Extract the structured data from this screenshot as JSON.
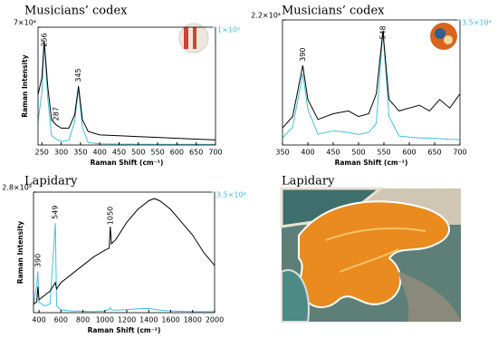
{
  "chart_data": [
    {
      "type": "line",
      "title": "Musicians’ codex",
      "xlabel": "Raman Shift (cm⁻¹)",
      "ylabel": "Raman Intensity",
      "x": [
        240,
        250,
        256,
        265,
        275,
        287,
        300,
        320,
        335,
        345,
        355,
        370,
        400,
        450,
        500,
        550,
        600,
        650,
        700
      ],
      "xlim": [
        240,
        700
      ],
      "xticks": [
        250,
        300,
        350,
        400,
        450,
        500,
        550,
        600,
        650,
        700
      ],
      "ylim": [
        0,
        70000
      ],
      "yticks": [
        {
          "value": 70000,
          "label": "7×10⁴"
        }
      ],
      "y2lim": [
        0,
        100000
      ],
      "y2ticks": [
        {
          "value": 100000,
          "label": "1×10⁵"
        }
      ],
      "series": [
        {
          "color": "#000000",
          "values": [
            30000,
            40000,
            62000,
            35000,
            15000,
            12000,
            10000,
            10000,
            18000,
            35000,
            15000,
            8000,
            6000,
            5500,
            5000,
            4500,
            4000,
            3500,
            3000
          ]
        },
        {
          "color": "#3fc0e0",
          "axis": "y2",
          "values": [
            20000,
            45000,
            88000,
            40000,
            8000,
            5000,
            3000,
            4000,
            20000,
            48000,
            15000,
            2000,
            1000,
            800,
            700,
            600,
            600,
            500,
            500
          ]
        }
      ],
      "annotations": [
        {
          "x": 256,
          "text": "256"
        },
        {
          "x": 287,
          "text": "287"
        },
        {
          "x": 345,
          "text": "345"
        }
      ]
    },
    {
      "type": "line",
      "title": "Musicians’ codex",
      "xlabel": "Raman Shift (cm⁻¹)",
      "x": [
        350,
        370,
        390,
        400,
        420,
        450,
        480,
        500,
        520,
        535,
        548,
        560,
        580,
        600,
        620,
        640,
        660,
        680,
        700
      ],
      "xlim": [
        350,
        700
      ],
      "xticks": [
        350,
        400,
        450,
        500,
        550,
        600,
        650,
        700
      ],
      "ylim": [
        0,
        22000
      ],
      "yticks": [
        {
          "value": 22000,
          "label": "2.2×10⁴"
        }
      ],
      "y2lim": [
        0,
        35000
      ],
      "y2ticks": [
        {
          "value": 35000,
          "label": "3.5×10⁴"
        }
      ],
      "series": [
        {
          "color": "#000000",
          "values": [
            3000,
            5000,
            14000,
            8000,
            4500,
            5500,
            6000,
            5000,
            5500,
            9000,
            20000,
            8000,
            6000,
            6500,
            7000,
            6000,
            8000,
            6500,
            9000
          ]
        },
        {
          "color": "#3fc0e0",
          "axis": "y2",
          "values": [
            2000,
            5000,
            20000,
            10000,
            3000,
            4000,
            3500,
            3000,
            3500,
            6000,
            32000,
            8000,
            2500,
            2200,
            2000,
            1900,
            1800,
            1600,
            1500
          ]
        }
      ],
      "annotations": [
        {
          "x": 390,
          "text": "390"
        },
        {
          "x": 548,
          "text": "548"
        }
      ]
    },
    {
      "type": "line",
      "title": "Lapidary",
      "xlabel": "Raman Shift (cm⁻¹)",
      "ylabel": "Raman Intensity",
      "x": [
        350,
        380,
        390,
        400,
        450,
        500,
        549,
        560,
        600,
        700,
        800,
        900,
        1000,
        1040,
        1050,
        1060,
        1100,
        1200,
        1300,
        1400,
        1450,
        1500,
        1600,
        1700,
        1800,
        1900,
        2000
      ],
      "xlim": [
        350,
        2000
      ],
      "xticks": [
        400,
        600,
        800,
        1000,
        1200,
        1400,
        1600,
        1800,
        2000
      ],
      "ylim": [
        0,
        2800
      ],
      "yticks": [
        {
          "value": 2800,
          "label": "2.8×10³"
        }
      ],
      "y2lim": [
        0,
        35000
      ],
      "y2ticks": [
        {
          "value": 35000,
          "label": "3.5×10⁴"
        }
      ],
      "series": [
        {
          "color": "#000000",
          "values": [
            200,
            250,
            600,
            300,
            400,
            500,
            700,
            550,
            700,
            900,
            1100,
            1300,
            1450,
            1500,
            2000,
            1600,
            1700,
            2100,
            2400,
            2600,
            2650,
            2600,
            2400,
            2100,
            1800,
            1400,
            1100
          ]
        },
        {
          "color": "#3fc0e0",
          "axis": "y2",
          "values": [
            2000,
            8000,
            12000,
            3000,
            2000,
            2500,
            26000,
            2000,
            800,
            500,
            400,
            300,
            500,
            1000,
            1500,
            800,
            700,
            900,
            1100,
            1200,
            1000,
            700,
            500,
            400,
            300,
            300,
            300
          ]
        }
      ],
      "annotations": [
        {
          "x": 390,
          "text": "390"
        },
        {
          "x": 549,
          "text": "549"
        },
        {
          "x": 1050,
          "text": "1050"
        }
      ]
    }
  ],
  "photo_panel": {
    "title": "Lapidary"
  }
}
